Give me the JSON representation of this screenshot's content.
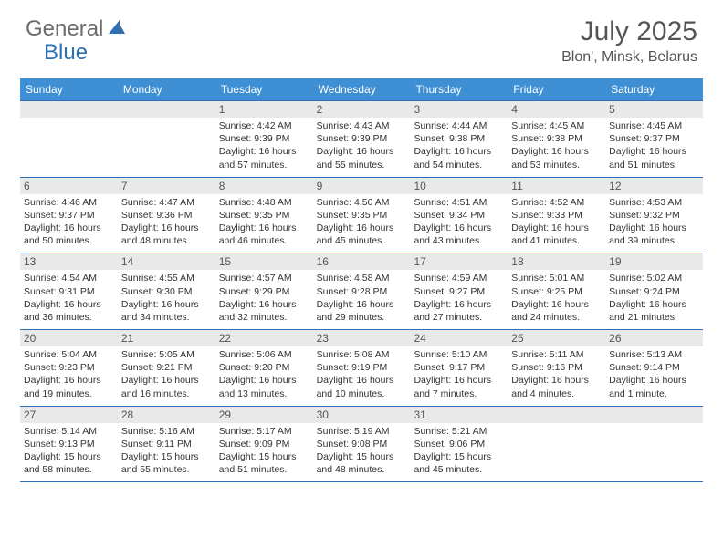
{
  "brand": {
    "word1": "General",
    "word2": "Blue",
    "color1": "#6b6b6b",
    "color2": "#2d6fb5"
  },
  "title": "July 2025",
  "location": "Blon', Minsk, Belarus",
  "colors": {
    "header_bg": "#3f8fd4",
    "header_text": "#ffffff",
    "row_border": "#2d6fb5",
    "daynum_bg": "#e9e9e9",
    "body_text": "#333333",
    "title_text": "#555555"
  },
  "day_labels": [
    "Sunday",
    "Monday",
    "Tuesday",
    "Wednesday",
    "Thursday",
    "Friday",
    "Saturday"
  ],
  "weeks": [
    [
      {
        "blank": true
      },
      {
        "blank": true
      },
      {
        "day": "1",
        "sunrise": "Sunrise: 4:42 AM",
        "sunset": "Sunset: 9:39 PM",
        "daylight": "Daylight: 16 hours and 57 minutes."
      },
      {
        "day": "2",
        "sunrise": "Sunrise: 4:43 AM",
        "sunset": "Sunset: 9:39 PM",
        "daylight": "Daylight: 16 hours and 55 minutes."
      },
      {
        "day": "3",
        "sunrise": "Sunrise: 4:44 AM",
        "sunset": "Sunset: 9:38 PM",
        "daylight": "Daylight: 16 hours and 54 minutes."
      },
      {
        "day": "4",
        "sunrise": "Sunrise: 4:45 AM",
        "sunset": "Sunset: 9:38 PM",
        "daylight": "Daylight: 16 hours and 53 minutes."
      },
      {
        "day": "5",
        "sunrise": "Sunrise: 4:45 AM",
        "sunset": "Sunset: 9:37 PM",
        "daylight": "Daylight: 16 hours and 51 minutes."
      }
    ],
    [
      {
        "day": "6",
        "sunrise": "Sunrise: 4:46 AM",
        "sunset": "Sunset: 9:37 PM",
        "daylight": "Daylight: 16 hours and 50 minutes."
      },
      {
        "day": "7",
        "sunrise": "Sunrise: 4:47 AM",
        "sunset": "Sunset: 9:36 PM",
        "daylight": "Daylight: 16 hours and 48 minutes."
      },
      {
        "day": "8",
        "sunrise": "Sunrise: 4:48 AM",
        "sunset": "Sunset: 9:35 PM",
        "daylight": "Daylight: 16 hours and 46 minutes."
      },
      {
        "day": "9",
        "sunrise": "Sunrise: 4:50 AM",
        "sunset": "Sunset: 9:35 PM",
        "daylight": "Daylight: 16 hours and 45 minutes."
      },
      {
        "day": "10",
        "sunrise": "Sunrise: 4:51 AM",
        "sunset": "Sunset: 9:34 PM",
        "daylight": "Daylight: 16 hours and 43 minutes."
      },
      {
        "day": "11",
        "sunrise": "Sunrise: 4:52 AM",
        "sunset": "Sunset: 9:33 PM",
        "daylight": "Daylight: 16 hours and 41 minutes."
      },
      {
        "day": "12",
        "sunrise": "Sunrise: 4:53 AM",
        "sunset": "Sunset: 9:32 PM",
        "daylight": "Daylight: 16 hours and 39 minutes."
      }
    ],
    [
      {
        "day": "13",
        "sunrise": "Sunrise: 4:54 AM",
        "sunset": "Sunset: 9:31 PM",
        "daylight": "Daylight: 16 hours and 36 minutes."
      },
      {
        "day": "14",
        "sunrise": "Sunrise: 4:55 AM",
        "sunset": "Sunset: 9:30 PM",
        "daylight": "Daylight: 16 hours and 34 minutes."
      },
      {
        "day": "15",
        "sunrise": "Sunrise: 4:57 AM",
        "sunset": "Sunset: 9:29 PM",
        "daylight": "Daylight: 16 hours and 32 minutes."
      },
      {
        "day": "16",
        "sunrise": "Sunrise: 4:58 AM",
        "sunset": "Sunset: 9:28 PM",
        "daylight": "Daylight: 16 hours and 29 minutes."
      },
      {
        "day": "17",
        "sunrise": "Sunrise: 4:59 AM",
        "sunset": "Sunset: 9:27 PM",
        "daylight": "Daylight: 16 hours and 27 minutes."
      },
      {
        "day": "18",
        "sunrise": "Sunrise: 5:01 AM",
        "sunset": "Sunset: 9:25 PM",
        "daylight": "Daylight: 16 hours and 24 minutes."
      },
      {
        "day": "19",
        "sunrise": "Sunrise: 5:02 AM",
        "sunset": "Sunset: 9:24 PM",
        "daylight": "Daylight: 16 hours and 21 minutes."
      }
    ],
    [
      {
        "day": "20",
        "sunrise": "Sunrise: 5:04 AM",
        "sunset": "Sunset: 9:23 PM",
        "daylight": "Daylight: 16 hours and 19 minutes."
      },
      {
        "day": "21",
        "sunrise": "Sunrise: 5:05 AM",
        "sunset": "Sunset: 9:21 PM",
        "daylight": "Daylight: 16 hours and 16 minutes."
      },
      {
        "day": "22",
        "sunrise": "Sunrise: 5:06 AM",
        "sunset": "Sunset: 9:20 PM",
        "daylight": "Daylight: 16 hours and 13 minutes."
      },
      {
        "day": "23",
        "sunrise": "Sunrise: 5:08 AM",
        "sunset": "Sunset: 9:19 PM",
        "daylight": "Daylight: 16 hours and 10 minutes."
      },
      {
        "day": "24",
        "sunrise": "Sunrise: 5:10 AM",
        "sunset": "Sunset: 9:17 PM",
        "daylight": "Daylight: 16 hours and 7 minutes."
      },
      {
        "day": "25",
        "sunrise": "Sunrise: 5:11 AM",
        "sunset": "Sunset: 9:16 PM",
        "daylight": "Daylight: 16 hours and 4 minutes."
      },
      {
        "day": "26",
        "sunrise": "Sunrise: 5:13 AM",
        "sunset": "Sunset: 9:14 PM",
        "daylight": "Daylight: 16 hours and 1 minute."
      }
    ],
    [
      {
        "day": "27",
        "sunrise": "Sunrise: 5:14 AM",
        "sunset": "Sunset: 9:13 PM",
        "daylight": "Daylight: 15 hours and 58 minutes."
      },
      {
        "day": "28",
        "sunrise": "Sunrise: 5:16 AM",
        "sunset": "Sunset: 9:11 PM",
        "daylight": "Daylight: 15 hours and 55 minutes."
      },
      {
        "day": "29",
        "sunrise": "Sunrise: 5:17 AM",
        "sunset": "Sunset: 9:09 PM",
        "daylight": "Daylight: 15 hours and 51 minutes."
      },
      {
        "day": "30",
        "sunrise": "Sunrise: 5:19 AM",
        "sunset": "Sunset: 9:08 PM",
        "daylight": "Daylight: 15 hours and 48 minutes."
      },
      {
        "day": "31",
        "sunrise": "Sunrise: 5:21 AM",
        "sunset": "Sunset: 9:06 PM",
        "daylight": "Daylight: 15 hours and 45 minutes."
      },
      {
        "blank": true
      },
      {
        "blank": true
      }
    ]
  ]
}
